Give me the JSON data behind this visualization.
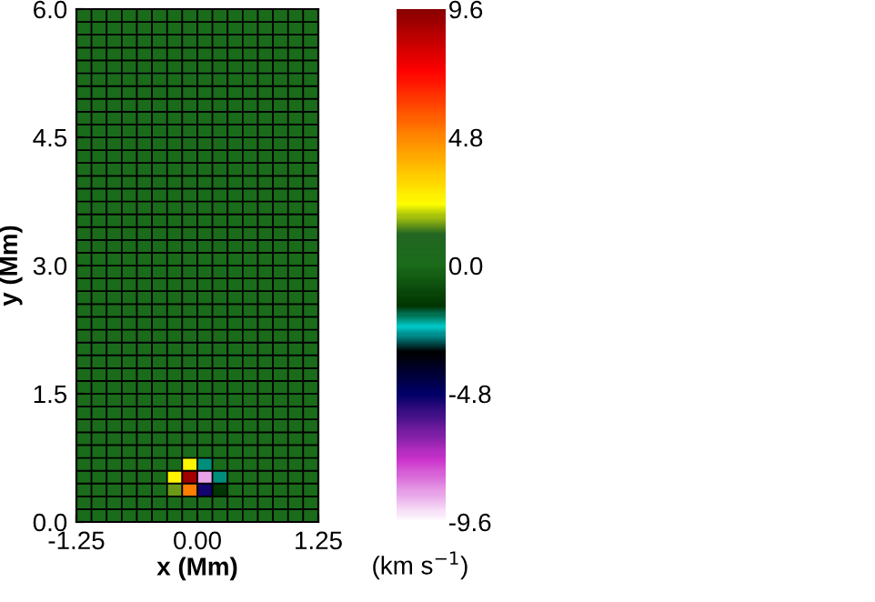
{
  "chart_data": {
    "type": "heatmap",
    "xlabel": "x (Mm)",
    "ylabel": "y (Mm)",
    "clabel": "(km s$^{−1}$)",
    "xlim": [
      -1.25,
      1.25
    ],
    "ylim": [
      0,
      6.0
    ],
    "xticks": [
      {
        "value": -1.25,
        "label": "-1.25"
      },
      {
        "value": 0,
        "label": "0.00"
      },
      {
        "value": 1.25,
        "label": "1.25"
      }
    ],
    "yticks": [
      {
        "value": 0,
        "label": "0.0"
      },
      {
        "value": 1.5,
        "label": "1.5"
      },
      {
        "value": 3.0,
        "label": "3.0"
      },
      {
        "value": 4.5,
        "label": "4.5"
      },
      {
        "value": 6.0,
        "label": "6.0"
      }
    ],
    "clim": [
      -9.6,
      9.6
    ],
    "cticks": [
      {
        "value": 9.6,
        "label": "9.6"
      },
      {
        "value": 4.8,
        "label": "4.8"
      },
      {
        "value": 0,
        "label": "0.0"
      },
      {
        "value": -4.8,
        "label": "-4.8"
      },
      {
        "value": -9.6,
        "label": "-9.6"
      }
    ],
    "cells": [
      [
        0,
        0,
        0,
        0,
        0,
        0,
        0,
        0,
        0,
        0,
        0,
        0,
        0,
        0,
        0,
        0
      ],
      [
        0,
        0,
        0,
        0,
        0,
        0,
        0,
        0,
        0,
        0,
        0,
        0,
        0,
        0,
        0,
        0
      ],
      [
        0,
        0,
        0,
        0,
        0,
        0,
        0,
        0,
        0,
        0,
        0,
        0,
        0,
        0,
        0,
        0
      ],
      [
        0,
        0,
        0,
        0,
        0,
        0,
        0,
        0,
        0,
        0,
        0,
        0,
        0,
        0,
        0,
        0
      ],
      [
        0,
        0,
        0,
        0,
        0,
        0,
        0,
        0,
        0,
        0,
        0,
        0,
        0,
        0,
        0,
        0
      ],
      [
        0,
        0,
        0,
        0,
        0,
        0,
        0,
        0,
        0,
        0,
        0,
        0,
        0,
        0,
        0,
        0
      ],
      [
        0,
        0,
        0,
        0,
        0,
        0,
        0,
        0,
        0,
        0,
        0,
        0,
        0,
        0,
        0,
        0
      ],
      [
        0,
        0,
        0,
        0,
        0,
        0,
        0,
        0,
        0,
        0,
        0,
        0,
        0,
        0,
        0,
        0
      ],
      [
        0,
        0,
        0,
        0,
        0,
        0,
        0,
        0,
        0,
        0,
        0,
        0,
        0,
        0,
        0,
        0
      ],
      [
        0,
        0,
        0,
        0,
        0,
        0,
        0,
        0,
        0,
        0,
        0,
        0,
        0,
        0,
        0,
        0
      ],
      [
        0,
        0,
        0,
        0,
        0,
        0,
        0,
        0,
        0,
        0,
        0,
        0,
        0,
        0,
        0,
        0
      ],
      [
        0,
        0,
        0,
        0,
        0,
        0,
        0,
        0,
        0,
        0,
        0,
        0,
        0,
        0,
        0,
        0
      ],
      [
        0,
        0,
        0,
        0,
        0,
        0,
        0,
        0,
        0,
        0,
        0,
        0,
        0,
        0,
        0,
        0
      ],
      [
        0,
        0,
        0,
        0,
        0,
        0,
        0,
        0,
        0,
        0,
        0,
        0,
        0,
        0,
        0,
        0
      ],
      [
        0,
        0,
        0,
        0,
        0,
        0,
        0,
        0,
        0,
        0,
        0,
        0,
        0,
        0,
        0,
        0
      ],
      [
        0,
        0,
        0,
        0,
        0,
        0,
        0,
        0,
        0,
        0,
        0,
        0,
        0,
        0,
        0,
        0
      ],
      [
        0,
        0,
        0,
        0,
        0,
        0,
        0,
        0,
        0,
        0,
        0,
        0,
        0,
        0,
        0,
        0
      ],
      [
        0,
        0,
        0,
        0,
        0,
        0,
        0,
        0,
        0,
        0,
        0,
        0,
        0,
        0,
        0,
        0
      ],
      [
        0,
        0,
        0,
        0,
        0,
        0,
        0,
        0,
        0,
        0,
        0,
        0,
        0,
        0,
        0,
        0
      ],
      [
        0,
        0,
        0,
        0,
        0,
        0,
        0,
        0,
        0,
        0,
        0,
        0,
        0,
        0,
        0,
        0
      ],
      [
        0,
        0,
        0,
        0,
        0,
        0,
        0,
        0,
        0,
        0,
        0,
        0,
        0,
        0,
        0,
        0
      ],
      [
        0,
        0,
        0,
        0,
        0,
        0,
        0,
        0,
        0,
        0,
        0,
        0,
        0,
        0,
        0,
        0
      ],
      [
        0,
        0,
        0,
        0,
        0,
        0,
        0,
        0,
        0,
        0,
        0,
        0,
        0,
        0,
        0,
        0
      ],
      [
        0,
        0,
        0,
        0,
        0,
        0,
        0,
        0,
        0,
        0,
        0,
        0,
        0,
        0,
        0,
        0
      ],
      [
        0,
        0,
        0,
        0,
        0,
        0,
        0,
        0,
        0,
        0,
        0,
        0,
        0,
        0,
        0,
        0
      ],
      [
        0,
        0,
        0,
        0,
        0,
        0,
        0,
        0,
        0,
        0,
        0,
        0,
        0,
        0,
        0,
        0
      ],
      [
        0,
        0,
        0,
        0,
        0,
        0,
        0,
        0,
        0,
        0,
        0,
        0,
        0,
        0,
        0,
        0
      ],
      [
        0,
        0,
        0,
        0,
        0,
        0,
        0,
        0,
        0,
        0,
        0,
        0,
        0,
        0,
        0,
        0
      ],
      [
        0,
        0,
        0,
        0,
        0,
        0,
        0,
        0,
        0,
        0,
        0,
        0,
        0,
        0,
        0,
        0
      ],
      [
        0,
        0,
        0,
        0,
        0,
        0,
        0,
        0,
        0,
        0,
        0,
        0,
        0,
        0,
        0,
        0
      ],
      [
        0,
        0,
        0,
        0,
        0,
        0,
        0,
        0,
        0,
        0,
        0,
        0,
        0,
        0,
        0,
        0
      ],
      [
        0,
        0,
        0,
        0,
        0,
        0,
        0,
        0,
        0,
        0,
        0,
        0,
        0,
        0,
        0,
        0
      ],
      [
        0,
        0,
        0,
        0,
        0,
        0,
        0,
        0,
        0,
        0,
        0,
        0,
        0,
        0,
        0,
        0
      ],
      [
        0,
        0,
        0,
        0,
        0,
        0,
        0,
        0,
        0,
        0,
        0,
        0,
        0,
        0,
        0,
        0
      ],
      [
        0,
        0,
        0,
        0,
        0,
        0,
        0,
        0,
        0,
        0,
        0,
        0,
        0,
        0,
        0,
        0
      ],
      [
        0,
        0,
        0,
        0,
        0,
        0,
        0,
        2.5,
        -2.0,
        0,
        0,
        0,
        0,
        0,
        0,
        0
      ],
      [
        0,
        0,
        0,
        0,
        0,
        0,
        2.5,
        9.0,
        -8.5,
        -2.0,
        0,
        0,
        0,
        0,
        0,
        0
      ],
      [
        0,
        0,
        0,
        0,
        0,
        0,
        1.5,
        5.0,
        -5.0,
        -1.5,
        0,
        0,
        0,
        0,
        0,
        0
      ],
      [
        0,
        0,
        0,
        0,
        0,
        0,
        0,
        0,
        0,
        0,
        0,
        0,
        0,
        0,
        0,
        0
      ],
      [
        0,
        0,
        0,
        0,
        0,
        0,
        0,
        0,
        0,
        0,
        0,
        0,
        0,
        0,
        0,
        0
      ]
    ]
  }
}
